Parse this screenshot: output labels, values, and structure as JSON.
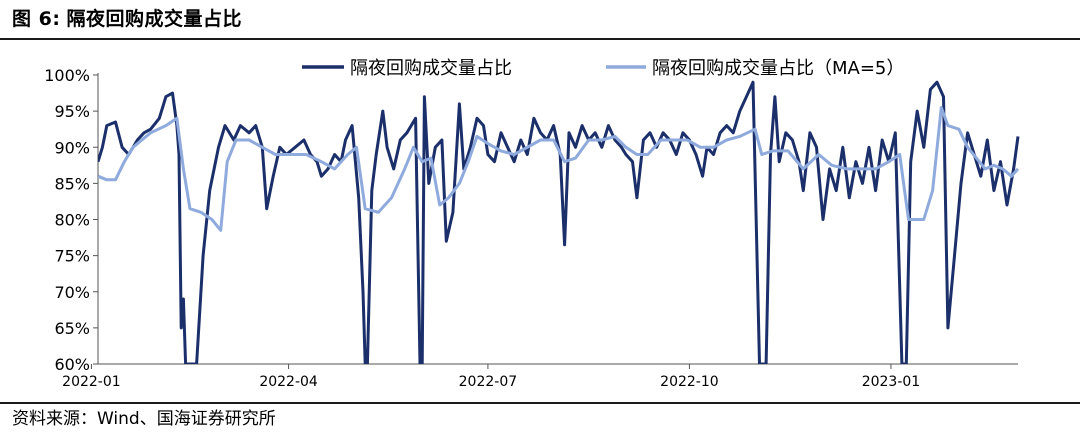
{
  "figure": {
    "label": "图 6:",
    "title": "隔夜回购成交量占比",
    "source": "资料来源：Wind、国海证券研究所"
  },
  "chart_data": {
    "type": "line",
    "ylim": [
      60,
      100
    ],
    "yticks": [
      60,
      65,
      70,
      75,
      80,
      85,
      90,
      95,
      100
    ],
    "ytick_labels": [
      "60%",
      "65%",
      "70%",
      "75%",
      "80%",
      "85%",
      "90%",
      "95%",
      "100%"
    ],
    "xlim": [
      "2022-01-04",
      "2023-02-28"
    ],
    "xticks": [
      "2022-01-01",
      "2022-04-01",
      "2022-07-01",
      "2022-10-01",
      "2023-01-01"
    ],
    "xtick_labels": [
      "2022-01",
      "2022-04",
      "2022-07",
      "2022-10",
      "2023-01"
    ],
    "legend_position": "top",
    "colors": {
      "series1": "#1b2f6b",
      "series2": "#8faadc"
    },
    "series": [
      {
        "name": "隔夜回购成交量占比",
        "points": [
          [
            "2022-01-04",
            88
          ],
          [
            "2022-01-06",
            90
          ],
          [
            "2022-01-08",
            93
          ],
          [
            "2022-01-12",
            93.5
          ],
          [
            "2022-01-15",
            90
          ],
          [
            "2022-01-18",
            89
          ],
          [
            "2022-01-22",
            91
          ],
          [
            "2022-01-25",
            92
          ],
          [
            "2022-01-28",
            92.5
          ],
          [
            "2022-02-01",
            94
          ],
          [
            "2022-02-04",
            97
          ],
          [
            "2022-02-07",
            97.5
          ],
          [
            "2022-02-09",
            93
          ],
          [
            "2022-02-10",
            89
          ],
          [
            "2022-02-11",
            65
          ],
          [
            "2022-02-12",
            69
          ],
          [
            "2022-02-13",
            60
          ],
          [
            "2022-02-18",
            60
          ],
          [
            "2022-02-21",
            75
          ],
          [
            "2022-02-24",
            84
          ],
          [
            "2022-02-28",
            90
          ],
          [
            "2022-03-03",
            93
          ],
          [
            "2022-03-07",
            91
          ],
          [
            "2022-03-10",
            93
          ],
          [
            "2022-03-14",
            92
          ],
          [
            "2022-03-17",
            93
          ],
          [
            "2022-03-20",
            90
          ],
          [
            "2022-03-22",
            81.5
          ],
          [
            "2022-03-25",
            86
          ],
          [
            "2022-03-28",
            90
          ],
          [
            "2022-03-31",
            89
          ],
          [
            "2022-04-04",
            90
          ],
          [
            "2022-04-08",
            91
          ],
          [
            "2022-04-11",
            89
          ],
          [
            "2022-04-14",
            88
          ],
          [
            "2022-04-16",
            86
          ],
          [
            "2022-04-19",
            87
          ],
          [
            "2022-04-22",
            89
          ],
          [
            "2022-04-25",
            88
          ],
          [
            "2022-04-27",
            91
          ],
          [
            "2022-04-30",
            93
          ],
          [
            "2022-05-03",
            83
          ],
          [
            "2022-05-05",
            70
          ],
          [
            "2022-05-06",
            60
          ],
          [
            "2022-05-07",
            60
          ],
          [
            "2022-05-09",
            84
          ],
          [
            "2022-05-11",
            89
          ],
          [
            "2022-05-14",
            95
          ],
          [
            "2022-05-16",
            90
          ],
          [
            "2022-05-19",
            87
          ],
          [
            "2022-05-22",
            91
          ],
          [
            "2022-05-25",
            92
          ],
          [
            "2022-05-29",
            94
          ],
          [
            "2022-05-31",
            60
          ],
          [
            "2022-06-01",
            60
          ],
          [
            "2022-06-02",
            97
          ],
          [
            "2022-06-04",
            85
          ],
          [
            "2022-06-07",
            90
          ],
          [
            "2022-06-10",
            91
          ],
          [
            "2022-06-12",
            77
          ],
          [
            "2022-06-15",
            81
          ],
          [
            "2022-06-18",
            96
          ],
          [
            "2022-06-20",
            87
          ],
          [
            "2022-06-23",
            90
          ],
          [
            "2022-06-26",
            94
          ],
          [
            "2022-06-29",
            93
          ],
          [
            "2022-07-01",
            89
          ],
          [
            "2022-07-04",
            88
          ],
          [
            "2022-07-07",
            92
          ],
          [
            "2022-07-10",
            90
          ],
          [
            "2022-07-13",
            88
          ],
          [
            "2022-07-16",
            91
          ],
          [
            "2022-07-19",
            89
          ],
          [
            "2022-07-22",
            94
          ],
          [
            "2022-07-25",
            92
          ],
          [
            "2022-07-28",
            91
          ],
          [
            "2022-07-31",
            93
          ],
          [
            "2022-08-03",
            89
          ],
          [
            "2022-08-05",
            76.5
          ],
          [
            "2022-08-07",
            92
          ],
          [
            "2022-08-10",
            90
          ],
          [
            "2022-08-13",
            93
          ],
          [
            "2022-08-16",
            91
          ],
          [
            "2022-08-19",
            92
          ],
          [
            "2022-08-22",
            90
          ],
          [
            "2022-08-25",
            93
          ],
          [
            "2022-08-28",
            91
          ],
          [
            "2022-08-31",
            90
          ],
          [
            "2022-09-02",
            89
          ],
          [
            "2022-09-05",
            88
          ],
          [
            "2022-09-07",
            83
          ],
          [
            "2022-09-10",
            91
          ],
          [
            "2022-09-13",
            92
          ],
          [
            "2022-09-16",
            90
          ],
          [
            "2022-09-19",
            92
          ],
          [
            "2022-09-22",
            91
          ],
          [
            "2022-09-25",
            89
          ],
          [
            "2022-09-28",
            92
          ],
          [
            "2022-10-01",
            91
          ],
          [
            "2022-10-04",
            89
          ],
          [
            "2022-10-07",
            86
          ],
          [
            "2022-10-09",
            90
          ],
          [
            "2022-10-12",
            89
          ],
          [
            "2022-10-15",
            92
          ],
          [
            "2022-10-18",
            93
          ],
          [
            "2022-10-21",
            92
          ],
          [
            "2022-10-24",
            95
          ],
          [
            "2022-10-27",
            97
          ],
          [
            "2022-10-30",
            99
          ],
          [
            "2022-11-02",
            60
          ],
          [
            "2022-11-05",
            60
          ],
          [
            "2022-11-07",
            89
          ],
          [
            "2022-11-09",
            97
          ],
          [
            "2022-11-11",
            88
          ],
          [
            "2022-11-14",
            92
          ],
          [
            "2022-11-17",
            91
          ],
          [
            "2022-11-20",
            88
          ],
          [
            "2022-11-22",
            84
          ],
          [
            "2022-11-25",
            92
          ],
          [
            "2022-11-28",
            90
          ],
          [
            "2022-12-01",
            80
          ],
          [
            "2022-12-04",
            87
          ],
          [
            "2022-12-07",
            84
          ],
          [
            "2022-12-10",
            90
          ],
          [
            "2022-12-13",
            83
          ],
          [
            "2022-12-16",
            88
          ],
          [
            "2022-12-19",
            85
          ],
          [
            "2022-12-22",
            90
          ],
          [
            "2022-12-25",
            84
          ],
          [
            "2022-12-28",
            91
          ],
          [
            "2022-12-31",
            88
          ],
          [
            "2023-01-03",
            92
          ],
          [
            "2023-01-06",
            60
          ],
          [
            "2023-01-08",
            60
          ],
          [
            "2023-01-10",
            88
          ],
          [
            "2023-01-13",
            95
          ],
          [
            "2023-01-16",
            90
          ],
          [
            "2023-01-19",
            98
          ],
          [
            "2023-01-22",
            99
          ],
          [
            "2023-01-25",
            97
          ],
          [
            "2023-01-27",
            65
          ],
          [
            "2023-01-30",
            75
          ],
          [
            "2023-02-02",
            85
          ],
          [
            "2023-02-05",
            92
          ],
          [
            "2023-02-08",
            89
          ],
          [
            "2023-02-11",
            86
          ],
          [
            "2023-02-14",
            91
          ],
          [
            "2023-02-17",
            84
          ],
          [
            "2023-02-20",
            88
          ],
          [
            "2023-02-23",
            82
          ],
          [
            "2023-02-26",
            87
          ],
          [
            "2023-02-28",
            91.5
          ]
        ]
      },
      {
        "name": "隔夜回购成交量占比（MA=5）",
        "points": [
          [
            "2022-01-04",
            86
          ],
          [
            "2022-01-08",
            85.5
          ],
          [
            "2022-01-12",
            85.5
          ],
          [
            "2022-01-16",
            88
          ],
          [
            "2022-01-20",
            90
          ],
          [
            "2022-01-24",
            91
          ],
          [
            "2022-01-28",
            92
          ],
          [
            "2022-02-04",
            93
          ],
          [
            "2022-02-09",
            94
          ],
          [
            "2022-02-12",
            87
          ],
          [
            "2022-02-15",
            81.5
          ],
          [
            "2022-02-20",
            81
          ],
          [
            "2022-02-25",
            80
          ],
          [
            "2022-03-01",
            78.5
          ],
          [
            "2022-03-04",
            88
          ],
          [
            "2022-03-08",
            91
          ],
          [
            "2022-03-14",
            91
          ],
          [
            "2022-03-20",
            90
          ],
          [
            "2022-03-26",
            89
          ],
          [
            "2022-04-02",
            89
          ],
          [
            "2022-04-09",
            89
          ],
          [
            "2022-04-16",
            88
          ],
          [
            "2022-04-22",
            87
          ],
          [
            "2022-04-28",
            89
          ],
          [
            "2022-05-02",
            90
          ],
          [
            "2022-05-06",
            81.5
          ],
          [
            "2022-05-12",
            81
          ],
          [
            "2022-05-18",
            83
          ],
          [
            "2022-05-24",
            87
          ],
          [
            "2022-05-28",
            90
          ],
          [
            "2022-06-01",
            88
          ],
          [
            "2022-06-05",
            88.5
          ],
          [
            "2022-06-09",
            82
          ],
          [
            "2022-06-13",
            83
          ],
          [
            "2022-06-18",
            85
          ],
          [
            "2022-06-22",
            88
          ],
          [
            "2022-06-26",
            91.5
          ],
          [
            "2022-07-01",
            90.5
          ],
          [
            "2022-07-07",
            89.5
          ],
          [
            "2022-07-13",
            89
          ],
          [
            "2022-07-19",
            90
          ],
          [
            "2022-07-25",
            91
          ],
          [
            "2022-07-31",
            91
          ],
          [
            "2022-08-05",
            88
          ],
          [
            "2022-08-10",
            88.5
          ],
          [
            "2022-08-16",
            91
          ],
          [
            "2022-08-22",
            91
          ],
          [
            "2022-08-28",
            91.5
          ],
          [
            "2022-09-02",
            90
          ],
          [
            "2022-09-07",
            89
          ],
          [
            "2022-09-12",
            89
          ],
          [
            "2022-09-18",
            91
          ],
          [
            "2022-09-24",
            91
          ],
          [
            "2022-09-30",
            91
          ],
          [
            "2022-10-06",
            90
          ],
          [
            "2022-10-12",
            90
          ],
          [
            "2022-10-18",
            91
          ],
          [
            "2022-10-24",
            91.5
          ],
          [
            "2022-10-31",
            92.5
          ],
          [
            "2022-11-03",
            89
          ],
          [
            "2022-11-08",
            89.5
          ],
          [
            "2022-11-15",
            89.5
          ],
          [
            "2022-11-22",
            87
          ],
          [
            "2022-11-29",
            89
          ],
          [
            "2022-12-05",
            87.5
          ],
          [
            "2022-12-12",
            87
          ],
          [
            "2022-12-18",
            87
          ],
          [
            "2022-12-25",
            87
          ],
          [
            "2022-12-31",
            88
          ],
          [
            "2023-01-05",
            89
          ],
          [
            "2023-01-09",
            80
          ],
          [
            "2023-01-16",
            80
          ],
          [
            "2023-01-20",
            84
          ],
          [
            "2023-01-24",
            95.5
          ],
          [
            "2023-01-27",
            93
          ],
          [
            "2023-02-01",
            92.5
          ],
          [
            "2023-02-05",
            90
          ],
          [
            "2023-02-09",
            88.5
          ],
          [
            "2023-02-13",
            87
          ],
          [
            "2023-02-17",
            87.5
          ],
          [
            "2023-02-21",
            87
          ],
          [
            "2023-02-25",
            86
          ],
          [
            "2023-02-28",
            87
          ]
        ]
      }
    ]
  }
}
